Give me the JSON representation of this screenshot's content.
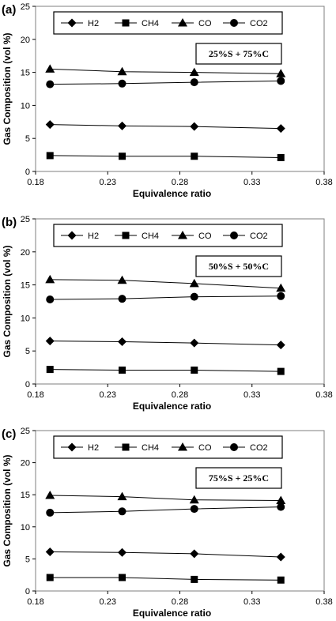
{
  "chart_data": [
    {
      "type": "line",
      "panel_label": "(a)",
      "annotation": "25%S + 75%C",
      "xlabel": "Equivalence ratio",
      "ylabel": "Gas Composition (vol %)",
      "xlim": [
        0.18,
        0.38
      ],
      "ylim": [
        0,
        25
      ],
      "x_ticks": [
        "0.18",
        "0.23",
        "0.28",
        "0.33",
        "0.38"
      ],
      "y_ticks": [
        "0",
        "5",
        "10",
        "15",
        "20",
        "25"
      ],
      "grid": false,
      "legend_position": "top",
      "x": [
        0.19,
        0.24,
        0.29,
        0.35
      ],
      "series": [
        {
          "name": "H2",
          "marker": "diamond",
          "values": [
            7.1,
            6.9,
            6.8,
            6.5
          ]
        },
        {
          "name": "CH4",
          "marker": "square",
          "values": [
            2.4,
            2.3,
            2.3,
            2.1
          ]
        },
        {
          "name": "CO",
          "marker": "triangle",
          "values": [
            15.5,
            15.1,
            15.0,
            14.8
          ]
        },
        {
          "name": "CO2",
          "marker": "circle",
          "values": [
            13.2,
            13.3,
            13.5,
            13.7
          ]
        }
      ]
    },
    {
      "type": "line",
      "panel_label": "(b)",
      "annotation": "50%S + 50%C",
      "xlabel": "Equivalence ratio",
      "ylabel": "Gas Composition (vol %)",
      "xlim": [
        0.18,
        0.38
      ],
      "ylim": [
        0,
        25
      ],
      "x_ticks": [
        "0.18",
        "0.23",
        "0.28",
        "0.33",
        "0.38"
      ],
      "y_ticks": [
        "0",
        "5",
        "10",
        "15",
        "20",
        "25"
      ],
      "grid": false,
      "legend_position": "top",
      "x": [
        0.19,
        0.24,
        0.29,
        0.35
      ],
      "series": [
        {
          "name": "H2",
          "marker": "diamond",
          "values": [
            6.5,
            6.4,
            6.2,
            5.9
          ]
        },
        {
          "name": "CH4",
          "marker": "square",
          "values": [
            2.2,
            2.1,
            2.1,
            1.9
          ]
        },
        {
          "name": "CO",
          "marker": "triangle",
          "values": [
            15.8,
            15.7,
            15.2,
            14.5
          ]
        },
        {
          "name": "CO2",
          "marker": "circle",
          "values": [
            12.8,
            12.9,
            13.2,
            13.3
          ]
        }
      ]
    },
    {
      "type": "line",
      "panel_label": "(c)",
      "annotation": "75%S + 25%C",
      "xlabel": "Equivalence ratio",
      "ylabel": "Gas Composition (vol %)",
      "xlim": [
        0.18,
        0.38
      ],
      "ylim": [
        0,
        25
      ],
      "x_ticks": [
        "0.18",
        "0.23",
        "0.28",
        "0.33",
        "0.38"
      ],
      "y_ticks": [
        "0",
        "5",
        "10",
        "15",
        "20",
        "25"
      ],
      "grid": false,
      "legend_position": "top",
      "x": [
        0.19,
        0.24,
        0.29,
        0.35
      ],
      "series": [
        {
          "name": "H2",
          "marker": "diamond",
          "values": [
            6.1,
            6.0,
            5.8,
            5.3
          ]
        },
        {
          "name": "CH4",
          "marker": "square",
          "values": [
            2.1,
            2.1,
            1.8,
            1.7
          ]
        },
        {
          "name": "CO",
          "marker": "triangle",
          "values": [
            14.9,
            14.7,
            14.2,
            14.1
          ]
        },
        {
          "name": "CO2",
          "marker": "circle",
          "values": [
            12.2,
            12.4,
            12.8,
            13.1
          ]
        }
      ]
    }
  ]
}
